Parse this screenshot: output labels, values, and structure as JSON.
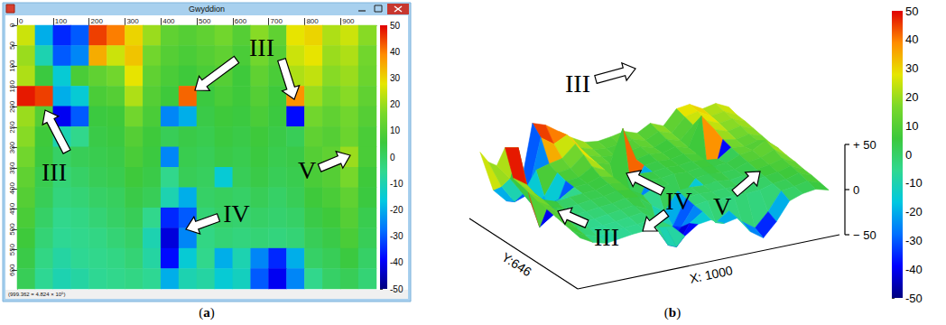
{
  "height_map": {
    "cells": [
      [
        25,
        -20,
        -35,
        -30,
        45,
        40,
        30,
        20,
        12,
        10,
        12,
        15,
        10,
        18,
        12,
        28,
        30,
        22,
        25,
        18
      ],
      [
        20,
        -10,
        -30,
        -25,
        35,
        25,
        32,
        15,
        10,
        8,
        10,
        12,
        8,
        15,
        10,
        25,
        28,
        20,
        22,
        15
      ],
      [
        22,
        5,
        -15,
        8,
        12,
        15,
        28,
        12,
        8,
        6,
        8,
        10,
        6,
        12,
        8,
        22,
        24,
        18,
        20,
        14
      ],
      [
        48,
        45,
        -20,
        -15,
        8,
        10,
        22,
        10,
        6,
        42,
        5,
        8,
        6,
        10,
        6,
        38,
        20,
        15,
        18,
        12
      ],
      [
        20,
        10,
        -40,
        -30,
        5,
        6,
        15,
        8,
        -25,
        -20,
        4,
        6,
        5,
        8,
        5,
        -38,
        15,
        12,
        15,
        10
      ],
      [
        18,
        6,
        -10,
        -5,
        4,
        5,
        10,
        6,
        2,
        4,
        3,
        5,
        4,
        6,
        4,
        2,
        12,
        10,
        14,
        8
      ],
      [
        15,
        5,
        0,
        2,
        3,
        4,
        8,
        5,
        -25,
        3,
        2,
        4,
        3,
        5,
        3,
        4,
        10,
        12,
        20,
        8
      ],
      [
        12,
        3,
        -2,
        0,
        2,
        3,
        6,
        4,
        -5,
        2,
        1,
        -15,
        2,
        4,
        2,
        3,
        8,
        10,
        16,
        6
      ],
      [
        10,
        2,
        -3,
        -2,
        0,
        1,
        4,
        2,
        -10,
        -20,
        0,
        1,
        0,
        2,
        0,
        2,
        6,
        8,
        12,
        5
      ],
      [
        8,
        0,
        -5,
        -4,
        -2,
        0,
        2,
        -5,
        -35,
        -30,
        -2,
        0,
        -1,
        0,
        -1,
        0,
        4,
        6,
        10,
        3
      ],
      [
        6,
        -2,
        -6,
        -5,
        -4,
        -2,
        0,
        -10,
        -42,
        -25,
        -4,
        -2,
        -3,
        -2,
        -3,
        -2,
        2,
        4,
        8,
        2
      ],
      [
        4,
        -4,
        -8,
        -6,
        -5,
        -4,
        -2,
        -8,
        -38,
        -15,
        -5,
        -20,
        -10,
        -25,
        -35,
        -20,
        0,
        2,
        5,
        0
      ],
      [
        2,
        -6,
        -10,
        -8,
        -6,
        -5,
        -4,
        -6,
        -20,
        -10,
        -8,
        -15,
        -12,
        -30,
        -40,
        -25,
        -5,
        0,
        2,
        -2
      ]
    ]
  },
  "chart_data": [
    {
      "type": "heatmap",
      "panel_label": "(a)",
      "window_title": "Gwyddion",
      "status_text": "(999.362 = 4.824 × 10⁵)",
      "xlim": [
        0,
        1000
      ],
      "xticks": [
        0,
        100,
        200,
        300,
        400,
        500,
        600,
        700,
        800,
        900
      ],
      "ylim": [
        0,
        646
      ],
      "yticks": [
        0,
        50,
        100,
        150,
        200,
        250,
        300,
        350,
        400,
        450,
        500,
        550,
        600
      ],
      "colorbar": {
        "range": [
          -50,
          50
        ],
        "ticks": [
          50,
          40,
          30,
          20,
          10,
          0,
          -10,
          -20,
          -30,
          -40,
          -50
        ]
      },
      "annotations": [
        "III",
        "III",
        "IV",
        "V"
      ]
    },
    {
      "type": "surface",
      "panel_label": "(b)",
      "x_label": "X: 1000",
      "y_label": "Y:646",
      "xlim": [
        0,
        1000
      ],
      "ylim": [
        0,
        646
      ],
      "zlim": [
        -50,
        50
      ],
      "zticks": [
        {
          "value": 50,
          "label": "+ 50"
        },
        0,
        {
          "value": -50,
          "label": "− 50"
        }
      ],
      "colorbar": {
        "range": [
          -50,
          50
        ],
        "ticks": [
          50,
          40,
          30,
          20,
          10,
          0,
          -10,
          -20,
          -30,
          -40,
          -50
        ]
      },
      "annotations": [
        "III",
        "III",
        "IV",
        "V"
      ]
    }
  ]
}
